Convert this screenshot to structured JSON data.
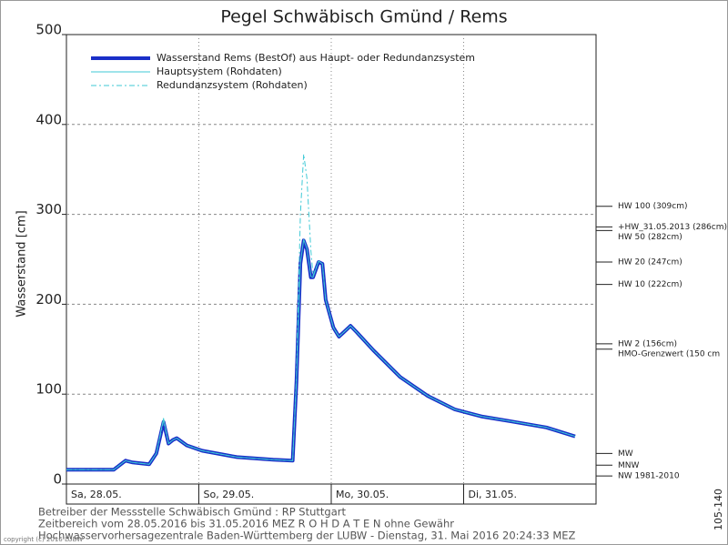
{
  "chart_data": {
    "type": "line",
    "title": "Pegel Schwäbisch Gmünd / Rems",
    "y_label": "Wasserstand [cm]",
    "x": [
      0,
      8.6,
      10.7,
      12,
      15,
      16.3,
      17.6,
      18.5,
      19.3,
      20,
      21.8,
      24.6,
      30.9,
      37.5,
      41,
      41.7,
      42.4,
      43,
      43.6,
      44.3,
      44.7,
      45.7,
      46.4,
      47,
      48.4,
      49.4,
      50.3,
      51.5,
      52.6,
      55.6,
      60.5,
      65.5,
      70.4,
      75.4,
      80.3,
      87,
      92.2
    ],
    "xlim": [
      0,
      96
    ],
    "xticks": [
      {
        "value": 0,
        "label": "Sa, 28.05."
      },
      {
        "value": 24,
        "label": "So, 29.05."
      },
      {
        "value": 48,
        "label": "Mo, 30.05."
      },
      {
        "value": 72,
        "label": "Di, 31.05."
      }
    ],
    "ylim": [
      0,
      500
    ],
    "yticks": [
      0,
      100,
      200,
      300,
      400,
      500
    ],
    "grid": true,
    "series": [
      {
        "name": "Wasserstand Rems (BestOf) aus Haupt- oder Redundanzsystem",
        "color": "#1a2fc8",
        "width": 4,
        "dash": "none",
        "values": [
          16,
          16,
          26,
          24,
          22,
          34,
          69,
          45,
          49,
          51,
          43,
          37,
          30,
          27,
          26,
          114,
          245,
          271,
          261,
          230,
          230,
          247,
          245,
          205,
          174,
          164,
          169,
          176,
          169,
          149,
          119,
          98,
          83,
          75,
          70,
          63,
          53
        ]
      },
      {
        "name": "Hauptsystem (Rohdaten)",
        "color": "#3fc9d6",
        "width": 1,
        "dash": "none",
        "values": [
          16,
          16,
          26,
          24,
          22,
          34,
          73,
          45,
          49,
          51,
          43,
          37,
          30,
          27,
          26,
          114,
          246,
          272,
          262,
          231,
          230,
          248,
          245,
          205,
          174,
          164,
          169,
          176,
          169,
          149,
          119,
          98,
          83,
          75,
          70,
          63,
          53
        ]
      },
      {
        "name": "Redundanzsystem (Rohdaten)",
        "color": "#3fc9d6",
        "width": 1,
        "dash": "6 3 2 3",
        "values": [
          16,
          16,
          26,
          24,
          22,
          34,
          70,
          45,
          49,
          51,
          43,
          37,
          30,
          27,
          26,
          120,
          300,
          367,
          340,
          260,
          232,
          248,
          245,
          205,
          174,
          164,
          169,
          176,
          169,
          149,
          119,
          98,
          83,
          75,
          70,
          63,
          53
        ]
      }
    ],
    "reference_lines": [
      {
        "label": "HW 100 (309cm)",
        "value": 309
      },
      {
        "label": "+HW_31.05.2013 (286cm)",
        "value": 286
      },
      {
        "label": "HW 50 (282cm)",
        "value": 282
      },
      {
        "label": "HW 20 (247cm)",
        "value": 247
      },
      {
        "label": "HW 10 (222cm)",
        "value": 222
      },
      {
        "label": "HW 2 (156cm)",
        "value": 156
      },
      {
        "label": "HMO-Grenzwert (150 cm",
        "value": 150
      },
      {
        "label": "MW",
        "value": 34
      },
      {
        "label": "MNW",
        "value": 21
      },
      {
        "label": "NW 1981-2010",
        "value": 9
      }
    ],
    "footer": [
      "Betreiber der Messstelle Schwäbisch Gmünd : RP Stuttgart",
      "Zeitbereich vom 28.05.2016 bis 31.05.2016    MEZ    R O H D A T E N ohne Gewähr",
      "Hochwasservorhersagezentrale Baden-Württemberg der LUBW - Dienstag, 31. Mai 2016 20:24:33 MEZ"
    ],
    "copyright": "copyright (c) 2016 LUBW",
    "side_label": "105-140"
  }
}
